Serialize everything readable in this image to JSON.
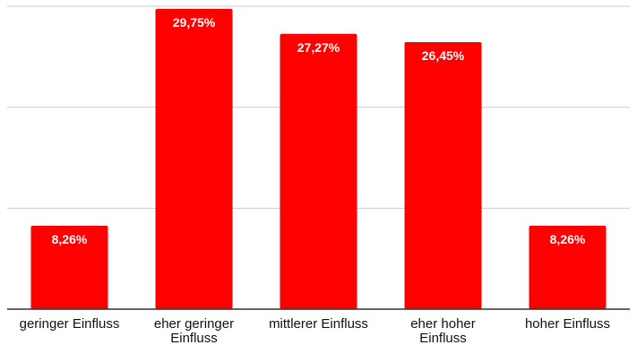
{
  "chart_data": {
    "type": "bar",
    "categories": [
      [
        "geringer Einfluss"
      ],
      [
        "eher geringer",
        "Einfluss"
      ],
      [
        "mittlerer Einfluss"
      ],
      [
        "eher hoher",
        "Einfluss"
      ],
      [
        "hoher Einfluss"
      ]
    ],
    "values": [
      8.26,
      29.75,
      27.27,
      26.45,
      8.26
    ],
    "data_labels": [
      "8,26%",
      "29,75%",
      "27,27%",
      "26,45%",
      "8,26%"
    ],
    "ylim": [
      0,
      30
    ],
    "grid": true,
    "bar_color": "#ff0000",
    "label_color": "#ffffff"
  }
}
